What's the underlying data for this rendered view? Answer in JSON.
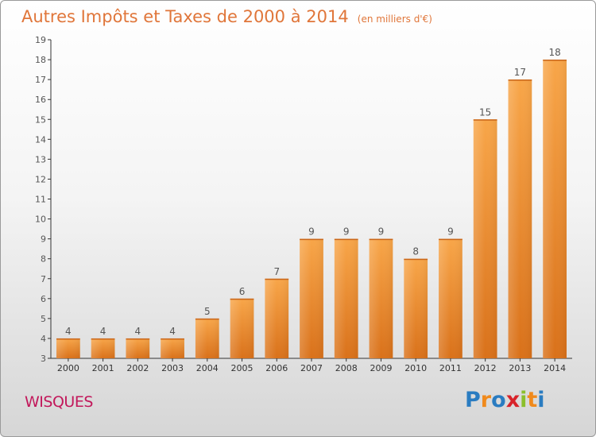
{
  "chart_data": {
    "type": "bar",
    "title": "Autres Impôts et Taxes de 2000 à 2014",
    "subtitle": "(en milliers d'€)",
    "categories": [
      "2000",
      "2001",
      "2002",
      "2003",
      "2004",
      "2005",
      "2006",
      "2007",
      "2008",
      "2009",
      "2010",
      "2011",
      "2012",
      "2013",
      "2014"
    ],
    "values": [
      4,
      4,
      4,
      4,
      5,
      6,
      7,
      9,
      9,
      9,
      8,
      9,
      15,
      17,
      18
    ],
    "data_labels": [
      "4",
      "4",
      "4",
      "4",
      "5",
      "6",
      "7",
      "9",
      "9",
      "9",
      "8",
      "9",
      "15",
      "17",
      "18"
    ],
    "y_ticks": [
      "3",
      "4",
      "5",
      "6",
      "7",
      "8",
      "9",
      "10",
      "11",
      "12",
      "13",
      "14",
      "15",
      "16",
      "17",
      "18",
      "19"
    ],
    "ylim": [
      3,
      19
    ],
    "grid": false,
    "bar_color": "#f0902e",
    "text_color": "#e0763a"
  },
  "footer": {
    "town": "WISQUES",
    "logo_letters": [
      "P",
      "r",
      "o",
      "x",
      "i",
      "t",
      "i"
    ],
    "logo_colors": [
      "#2a7cc1",
      "#f08a1c",
      "#2a7cc1",
      "#d8232a",
      "#8bbf2c",
      "#f08a1c",
      "#2a7cc1"
    ]
  }
}
